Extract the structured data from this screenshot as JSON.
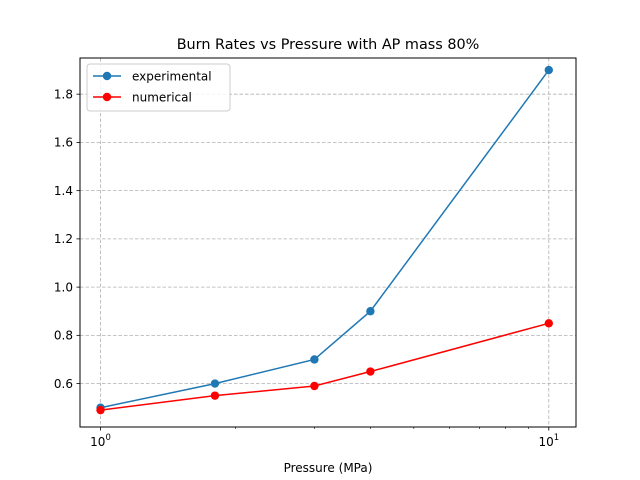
{
  "chart_data": {
    "type": "line",
    "title": "Burn Rates vs Pressure with AP mass 80%",
    "xlabel": "Pressure (MPa)",
    "ylabel": "",
    "xscale": "log",
    "xlim": [
      0.9,
      11.5
    ],
    "ylim": [
      0.42,
      1.95
    ],
    "grid": true,
    "grid_style": "dashed",
    "legend_position": "top-left",
    "x_ticks": [
      {
        "value": 1,
        "base": "10",
        "exp": "0"
      },
      {
        "value": 10,
        "base": "10",
        "exp": "1"
      }
    ],
    "y_ticks": [
      {
        "value": 0.6,
        "label": "0.6"
      },
      {
        "value": 0.8,
        "label": "0.8"
      },
      {
        "value": 1.0,
        "label": "1.0"
      },
      {
        "value": 1.2,
        "label": "1.2"
      },
      {
        "value": 1.4,
        "label": "1.4"
      },
      {
        "value": 1.6,
        "label": "1.6"
      },
      {
        "value": 1.8,
        "label": "1.8"
      }
    ],
    "series": [
      {
        "name": "experimental",
        "color": "#1f77b4",
        "marker": "circle",
        "x": [
          1,
          1.8,
          3,
          4,
          10
        ],
        "y": [
          0.5,
          0.6,
          0.7,
          0.9,
          1.9
        ]
      },
      {
        "name": "numerical",
        "color": "#ff0000",
        "marker": "circle",
        "x": [
          1,
          1.8,
          3,
          4,
          10
        ],
        "y": [
          0.49,
          0.55,
          0.59,
          0.65,
          0.85
        ]
      }
    ]
  }
}
